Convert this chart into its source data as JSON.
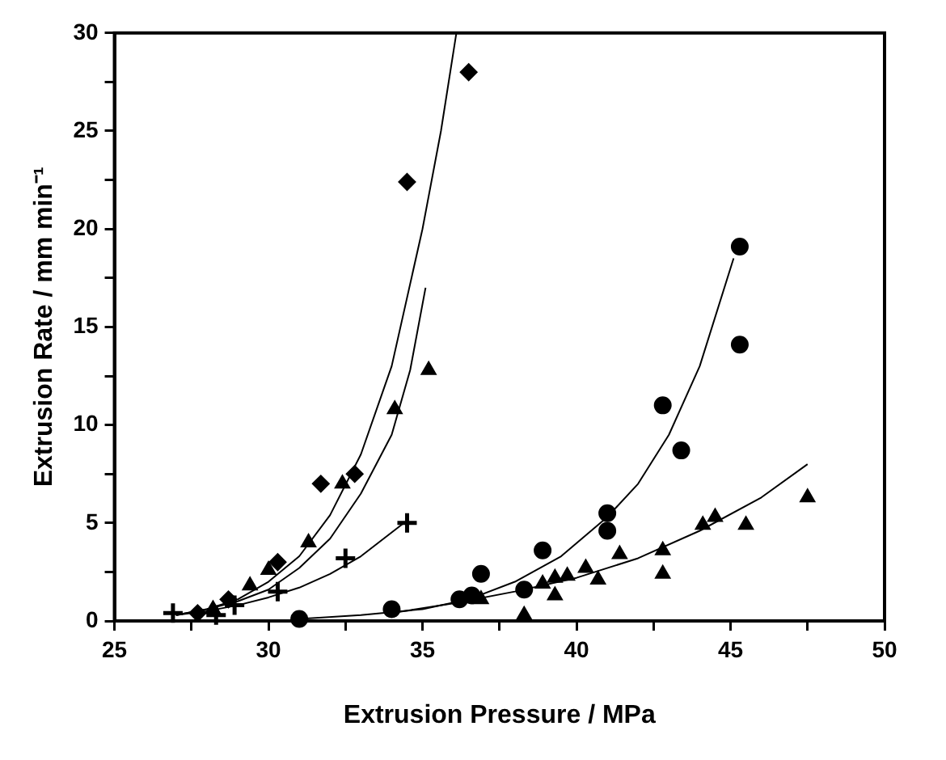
{
  "chart_data": {
    "type": "scatter",
    "xlabel": "Extrusion Pressure / MPa",
    "ylabel": "Extrusion Rate / mm min⁻¹",
    "xlim": [
      25,
      50
    ],
    "ylim": [
      0,
      30
    ],
    "xticks": [
      25,
      {
        "value": 27.5,
        "label": null
      },
      30,
      {
        "value": 32.5,
        "label": null
      },
      35,
      {
        "value": 37.5,
        "label": null
      },
      40,
      {
        "value": 42.5,
        "label": null
      },
      45,
      {
        "value": 47.5,
        "label": null
      },
      50
    ],
    "yticks": [
      0,
      {
        "value": 2.5,
        "label": null
      },
      5,
      {
        "value": 7.5,
        "label": null
      },
      10,
      {
        "value": 12.5,
        "label": null
      },
      15,
      {
        "value": 17.5,
        "label": null
      },
      20,
      {
        "value": 22.5,
        "label": null
      },
      25,
      {
        "value": 27.5,
        "label": null
      },
      30
    ],
    "grid": false,
    "legend": false,
    "series": [
      {
        "type": "scatter",
        "marker": "diamond",
        "color": "#000000",
        "x": [
          27.7,
          28.7,
          30.3,
          31.7,
          32.8,
          34.5,
          36.5
        ],
        "values": [
          0.4,
          1.1,
          3.0,
          7.0,
          7.5,
          22.4,
          28.0
        ]
      },
      {
        "type": "scatter",
        "marker": "triangle",
        "color": "#000000",
        "x": [
          28.2,
          29.4,
          30.0,
          31.3,
          32.4,
          34.1,
          35.2
        ],
        "values": [
          0.6,
          1.8,
          2.6,
          4.0,
          7.0,
          10.8,
          12.8
        ]
      },
      {
        "type": "scatter",
        "marker": "cross",
        "color": "#000000",
        "x": [
          26.9,
          28.3,
          28.9,
          30.3,
          32.5,
          34.5
        ],
        "values": [
          0.4,
          0.3,
          0.8,
          1.5,
          3.2,
          5.0
        ]
      },
      {
        "type": "scatter",
        "marker": "circle",
        "color": "#000000",
        "x": [
          31.0,
          33.8,
          34.0,
          36.2,
          36.6,
          36.9,
          38.3,
          38.9,
          41.0,
          41.0,
          42.8,
          43.4,
          45.3,
          45.3
        ],
        "values": [
          0.1,
          null,
          0.6,
          1.1,
          1.3,
          2.4,
          1.6,
          3.6,
          4.6,
          5.5,
          11.0,
          8.7,
          14.1,
          19.1
        ]
      },
      {
        "type": "scatter",
        "marker": "triangle",
        "color": "#000000",
        "x": [
          36.9,
          38.3,
          38.9,
          39.3,
          39.3,
          39.7,
          40.3,
          40.7,
          41.4,
          42.8,
          42.8,
          44.1,
          44.5,
          45.5,
          47.5
        ],
        "values": [
          1.1,
          0.3,
          1.9,
          1.3,
          2.2,
          2.3,
          2.7,
          2.1,
          3.4,
          3.6,
          2.4,
          4.9,
          5.3,
          4.9,
          6.3
        ]
      },
      {
        "type": "line",
        "marker": "none",
        "color": "#000000",
        "x": [
          27,
          28,
          29,
          30,
          31,
          32,
          33,
          34,
          35,
          35.6,
          36.1
        ],
        "values": [
          0.3,
          0.6,
          1.1,
          2.0,
          3.3,
          5.4,
          8.5,
          13.0,
          20.0,
          25.0,
          30.0
        ]
      },
      {
        "type": "line",
        "marker": "none",
        "color": "#000000",
        "x": [
          27,
          28,
          29,
          30,
          31,
          32,
          33,
          34,
          34.6,
          35.1
        ],
        "values": [
          0.3,
          0.6,
          1.0,
          1.6,
          2.7,
          4.2,
          6.5,
          9.5,
          12.8,
          17.0
        ]
      },
      {
        "type": "line",
        "marker": "none",
        "color": "#000000",
        "x": [
          27,
          28,
          29,
          30,
          31,
          32,
          33,
          34.4
        ],
        "values": [
          0.3,
          0.5,
          0.8,
          1.2,
          1.7,
          2.4,
          3.3,
          5.0
        ]
      },
      {
        "type": "line",
        "marker": "none",
        "color": "#000000",
        "x": [
          31,
          33,
          35,
          36.5,
          38,
          39.5,
          41,
          42,
          43,
          44,
          45.1
        ],
        "values": [
          0.1,
          0.3,
          0.6,
          1.1,
          2.0,
          3.3,
          5.3,
          7.0,
          9.5,
          13.0,
          18.5
        ]
      },
      {
        "type": "line",
        "marker": "none",
        "color": "#000000",
        "x": [
          34,
          36,
          38,
          40,
          42,
          44,
          46,
          47.5
        ],
        "values": [
          0.4,
          0.9,
          1.5,
          2.2,
          3.2,
          4.6,
          6.3,
          8.0
        ]
      }
    ]
  }
}
